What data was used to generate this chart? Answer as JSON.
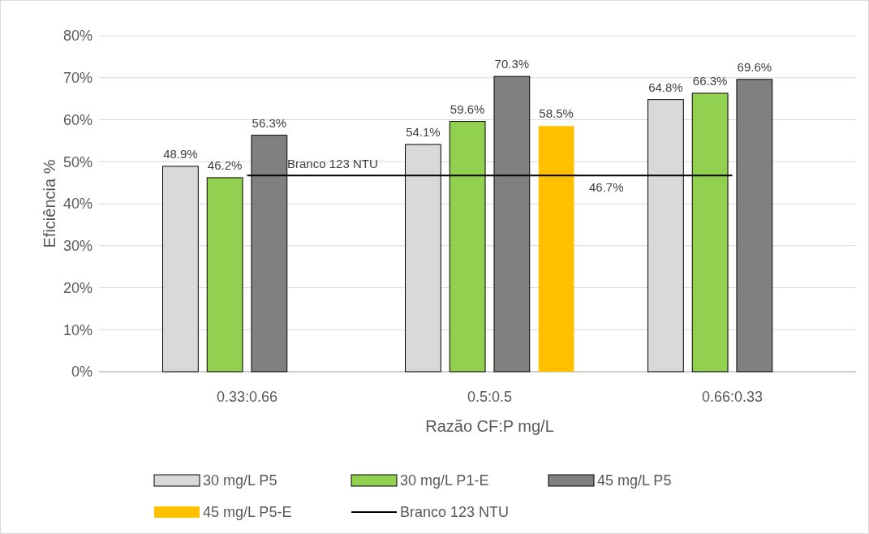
{
  "chart_data": {
    "type": "bar",
    "xlabel": "Razão CF:P mg/L",
    "ylabel": "Eficiência %",
    "categories": [
      "0.33:0.66",
      "0.5:0.5",
      "0.66:0.33"
    ],
    "series": [
      {
        "name": "30 mg/L P5",
        "color": "#d9d9d9",
        "values": [
          48.9,
          54.1,
          64.8
        ],
        "value_labels": [
          "48.9%",
          "54.1%",
          "64.8%"
        ]
      },
      {
        "name": "30 mg/L P1-E",
        "color": "#92d050",
        "values": [
          46.2,
          59.6,
          66.3
        ],
        "value_labels": [
          "46.2%",
          "59.6%",
          "66.3%"
        ]
      },
      {
        "name": "45 mg/L P5",
        "color": "#808080",
        "values": [
          56.3,
          70.3,
          69.6
        ],
        "value_labels": [
          "56.3%",
          "70.3%",
          "69.6%"
        ]
      },
      {
        "name": "45 mg/L P5-E",
        "color": "#ffc000",
        "values": [
          null,
          58.5,
          null
        ],
        "value_labels": [
          null,
          "58.5%",
          null
        ]
      },
      {
        "name": "Branco 123 NTU",
        "type": "line",
        "color": "#000000",
        "values": [
          46.7,
          46.7,
          46.7
        ]
      }
    ],
    "annotations": [
      "Branco 123 NTU",
      "46.7%"
    ],
    "ylim": [
      0,
      80
    ],
    "yticks": [
      {
        "value": 0,
        "label": "0%"
      },
      {
        "value": 10,
        "label": "10%"
      },
      {
        "value": 20,
        "label": "20%"
      },
      {
        "value": 30,
        "label": "30%"
      },
      {
        "value": 40,
        "label": "40%"
      },
      {
        "value": 50,
        "label": "50%"
      },
      {
        "value": 60,
        "label": "60%"
      },
      {
        "value": 70,
        "label": "70%"
      },
      {
        "value": 80,
        "label": "80%"
      }
    ],
    "grid": "y",
    "legend": "bottom"
  }
}
